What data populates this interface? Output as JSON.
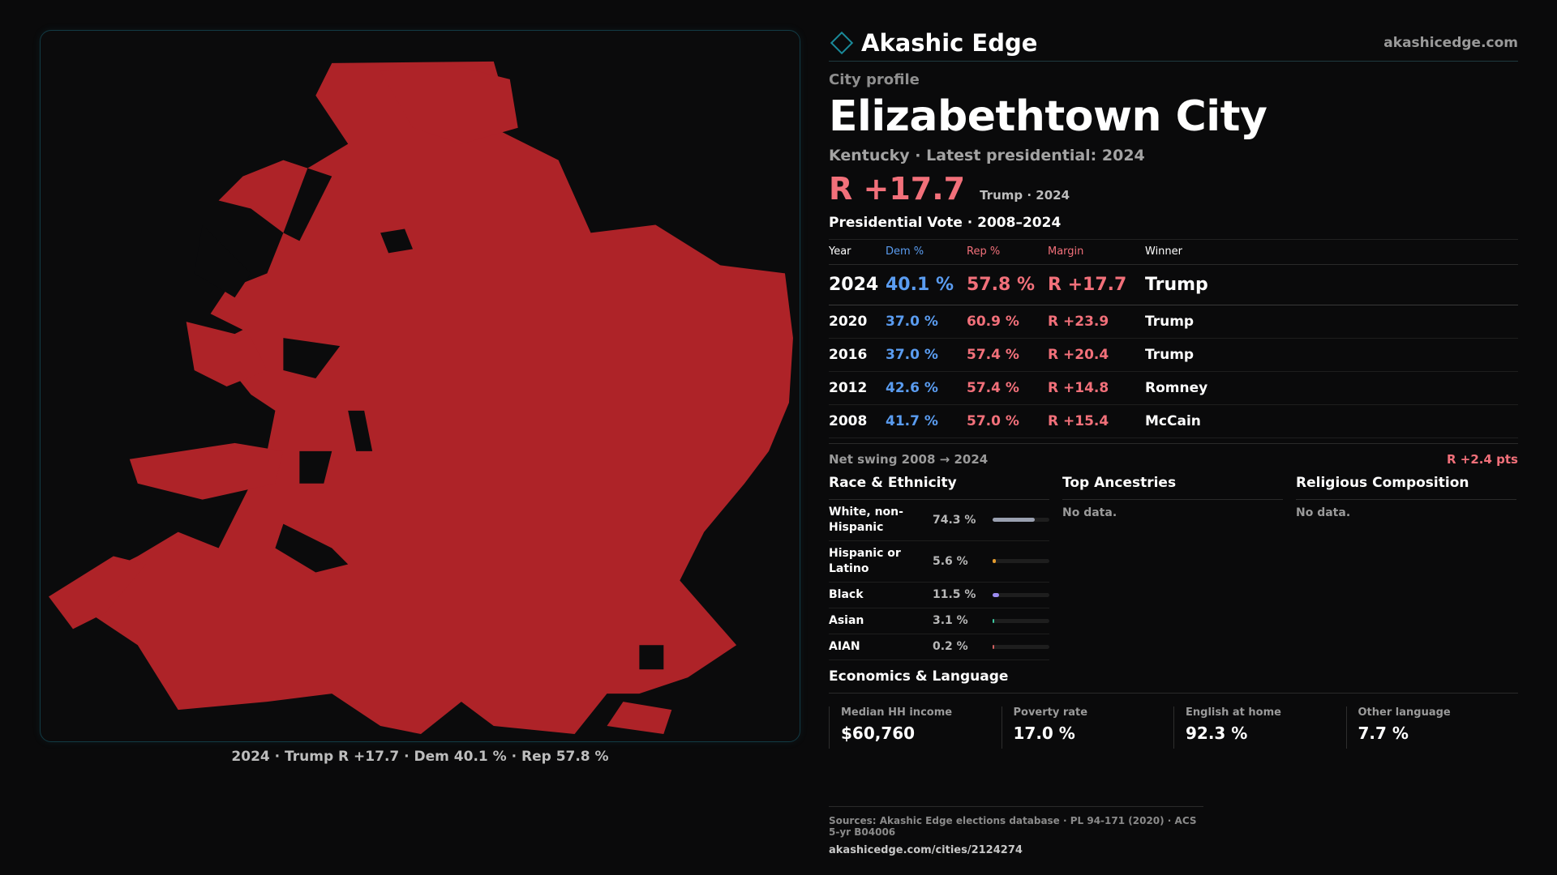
{
  "map": {
    "fill_color": "#ae2328",
    "caption": "2024 · Trump R +17.7 · Dem 40.1 % · Rep 57.8 %"
  },
  "brand": {
    "name": "Akashic Edge",
    "url": "akashicedge.com",
    "accent": "#1a8a9a"
  },
  "profile": {
    "eyebrow": "City profile",
    "city": "Elizabethtown City",
    "subtitle": "Kentucky · Latest presidential: 2024",
    "margin": "R +17.7",
    "margin_note": "Trump · 2024"
  },
  "votes": {
    "title": "Presidential Vote · 2008–2024",
    "headers": [
      "Year",
      "Dem %",
      "Rep %",
      "Margin",
      "Winner"
    ],
    "rows": [
      {
        "year": "2024",
        "dem": "40.1 %",
        "rep": "57.8 %",
        "margin": "R +17.7",
        "winner": "Trump"
      },
      {
        "year": "2020",
        "dem": "37.0 %",
        "rep": "60.9 %",
        "margin": "R +23.9",
        "winner": "Trump"
      },
      {
        "year": "2016",
        "dem": "37.0 %",
        "rep": "57.4 %",
        "margin": "R +20.4",
        "winner": "Trump"
      },
      {
        "year": "2012",
        "dem": "42.6 %",
        "rep": "57.4 %",
        "margin": "R +14.8",
        "winner": "Romney"
      },
      {
        "year": "2008",
        "dem": "41.7 %",
        "rep": "57.0 %",
        "margin": "R +15.4",
        "winner": "McCain"
      }
    ],
    "swing_label": "Net swing 2008 → 2024",
    "swing_value": "R +2.4 pts"
  },
  "race": {
    "title": "Race & Ethnicity",
    "items": [
      {
        "name": "White, non-Hispanic",
        "pct": "74.3 %",
        "fraction": 0.743,
        "color": "#9aa0b0"
      },
      {
        "name": "Hispanic or Latino",
        "pct": "5.6 %",
        "fraction": 0.056,
        "color": "#e39b2e"
      },
      {
        "name": "Black",
        "pct": "11.5 %",
        "fraction": 0.115,
        "color": "#9c8cf0"
      },
      {
        "name": "Asian",
        "pct": "3.1 %",
        "fraction": 0.031,
        "color": "#3cc9a0"
      },
      {
        "name": "AIAN",
        "pct": "0.2 %",
        "fraction": 0.002,
        "color": "#d06060"
      }
    ]
  },
  "ancestries": {
    "title": "Top Ancestries",
    "empty": "No data."
  },
  "religion": {
    "title": "Religious Composition",
    "empty": "No data."
  },
  "econ": {
    "title": "Economics & Language",
    "cards": [
      {
        "label": "Median HH income",
        "value": "$60,760"
      },
      {
        "label": "Poverty rate",
        "value": "17.0 %"
      },
      {
        "label": "English at home",
        "value": "92.3 %"
      },
      {
        "label": "Other language",
        "value": "7.7 %"
      }
    ]
  },
  "footer": {
    "sources": "Sources: Akashic Edge elections database · PL 94-171 (2020) · ACS 5-yr B04006",
    "url": "akashicedge.com/cities/2124274"
  }
}
